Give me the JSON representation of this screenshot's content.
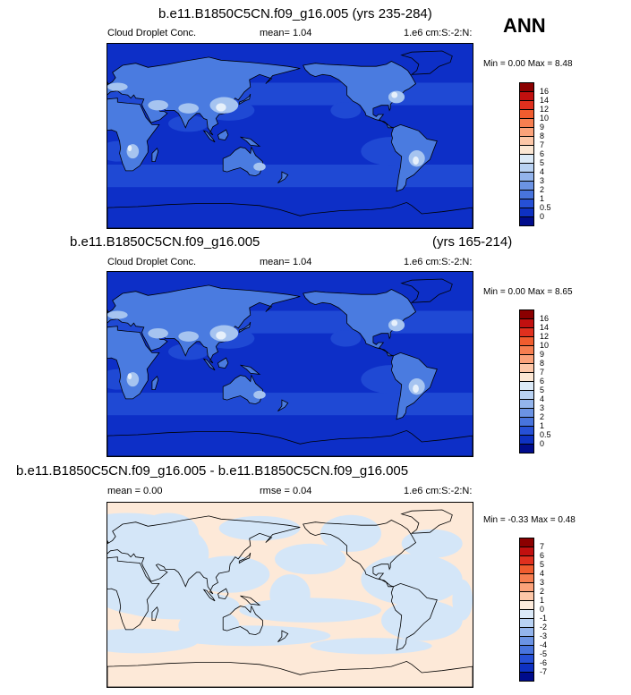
{
  "season": "ANN",
  "panels": [
    {
      "title": "b.e11.B1850C5CN.f09_g16.005 (yrs 235-284)",
      "title_right": "",
      "left_label": "Cloud Droplet Conc.",
      "mid_label": "mean=   1.04",
      "right_label": "1.e6 cm:S:-2:N:",
      "minmax": "Min =   0.00 Max =   8.48",
      "colorbar": {
        "labels": [
          "16",
          "14",
          "12",
          "10",
          "9",
          "8",
          "7",
          "6",
          "5",
          "4",
          "3",
          "2",
          "1",
          "0.5",
          "0"
        ],
        "colors": [
          "#8b0000",
          "#c1100f",
          "#e0301e",
          "#f05c2e",
          "#f67e50",
          "#fba27a",
          "#fdc7a8",
          "#fce7d4",
          "#dceaf8",
          "#b9d2f3",
          "#93b4ec",
          "#6b93e4",
          "#4874dd",
          "#2650d6",
          "#0e31c2",
          "#000c8c"
        ]
      }
    },
    {
      "title": "b.e11.B1850C5CN.f09_g16.005",
      "title_right": "(yrs 165-214)",
      "left_label": "Cloud Droplet Conc.",
      "mid_label": "mean=   1.04",
      "right_label": "1.e6 cm:S:-2:N:",
      "minmax": "Min =   0.00 Max =   8.65",
      "colorbar": {
        "labels": [
          "16",
          "14",
          "12",
          "10",
          "9",
          "8",
          "7",
          "6",
          "5",
          "4",
          "3",
          "2",
          "1",
          "0.5",
          "0"
        ],
        "colors": [
          "#8b0000",
          "#c1100f",
          "#e0301e",
          "#f05c2e",
          "#f67e50",
          "#fba27a",
          "#fdc7a8",
          "#fce7d4",
          "#dceaf8",
          "#b9d2f3",
          "#93b4ec",
          "#6b93e4",
          "#4874dd",
          "#2650d6",
          "#0e31c2",
          "#000c8c"
        ]
      }
    },
    {
      "title": "b.e11.B1850C5CN.f09_g16.005 - b.e11.B1850C5CN.f09_g16.005",
      "title_right": "",
      "left_label": "mean =   0.00",
      "mid_label": "rmse =   0.04",
      "right_label": "1.e6 cm:S:-2:N:",
      "minmax": "Min =  -0.33 Max =   0.48",
      "colorbar": {
        "labels": [
          "7",
          "6",
          "5",
          "4",
          "3",
          "2",
          "1",
          "0",
          "-1",
          "-2",
          "-3",
          "-4",
          "-5",
          "-6",
          "-7"
        ],
        "colors": [
          "#8b0000",
          "#c1100f",
          "#e0301e",
          "#f05c2e",
          "#f67e50",
          "#fba27a",
          "#fdc7a8",
          "#fdebdc",
          "#dbe9f8",
          "#b9d2f3",
          "#93b4ec",
          "#6b93e4",
          "#4874dd",
          "#2650d6",
          "#0e31c2",
          "#000c8c"
        ]
      }
    }
  ],
  "colors": {
    "ocean_low": "#0d2fc7",
    "ocean_mid": "#1f49d4",
    "land_mid": "#4a7be0",
    "land_high": "#a6c4f0",
    "land_peak": "#e6f0fb",
    "diff_pos": "#fde9d8",
    "diff_neg": "#d4e6f8"
  }
}
